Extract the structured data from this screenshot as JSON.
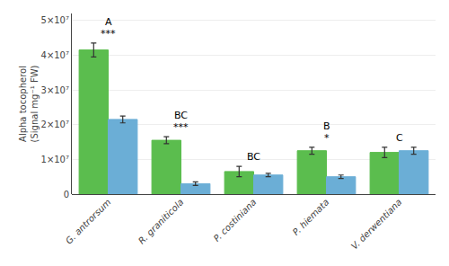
{
  "chart_data": {
    "type": "bar",
    "categories": [
      "G. antrorsum",
      "R. graniticola",
      "P. costiniana",
      "P. hiemata",
      "V. derwentiana"
    ],
    "series": [
      {
        "color": "#5BBD4E",
        "values": [
          41500000.0,
          15500000.0,
          6500000.0,
          12500000.0,
          12000000.0
        ],
        "errors": [
          2000000.0,
          1000000.0,
          1500000.0,
          1000000.0,
          1500000.0
        ]
      },
      {
        "color": "#6BAED6",
        "values": [
          21500000.0,
          3000000.0,
          5500000.0,
          5000000.0,
          12500000.0
        ],
        "errors": [
          1000000.0,
          500000.0,
          500000.0,
          500000.0,
          1000000.0
        ]
      }
    ],
    "ylabel": "Alpha tocopherol\n(Signal mg⁻¹ FW)",
    "ylim": [
      0,
      52000000.0
    ],
    "yticks": [
      0,
      {
        "value": 10000000.0,
        "label": "1×10⁷"
      },
      {
        "value": 20000000.0,
        "label": "2×10⁷"
      },
      {
        "value": 30000000.0,
        "label": "3×10⁷"
      },
      {
        "value": 40000000.0,
        "label": "4×10⁷"
      },
      {
        "value": 50000000.0,
        "label": "5×10⁷"
      }
    ],
    "annotations": [
      {
        "category": "G. antrorsum",
        "text": "***"
      },
      {
        "category": "R. graniticola",
        "text": "***"
      },
      {
        "category": "P. hiemata",
        "text": "*"
      },
      {
        "category": "G. antrorsum",
        "text": "A"
      },
      {
        "category": "R. graniticola",
        "text": "BC"
      },
      {
        "category": "P. costiniana",
        "text": "BC"
      },
      {
        "category": "P. hiemata",
        "text": "B"
      },
      {
        "category": "V. derwentiana",
        "text": "C"
      }
    ]
  }
}
